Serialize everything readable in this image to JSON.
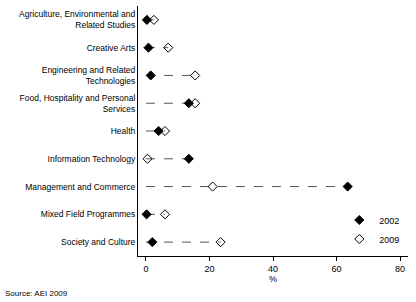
{
  "chart_data": {
    "type": "dot",
    "orientation": "horizontal",
    "categories": [
      "Agriculture, Environmental and Related Studies",
      "Creative Arts",
      "Engineering and Related Technologies",
      "Food, Hospitality and Personal Services",
      "Health",
      "Information Technology",
      "Management and Commerce",
      "Mixed Field Programmes",
      "Society and Culture"
    ],
    "series": [
      {
        "name": "2002",
        "color": "#000000",
        "marker": "diamond",
        "values": [
          0.3,
          0.8,
          1.5,
          13.5,
          4,
          13.5,
          63.5,
          0.2,
          2
        ]
      },
      {
        "name": "2009",
        "color": "#000000",
        "marker": "diamond-open",
        "values": [
          2.5,
          7,
          15.5,
          15.5,
          6,
          0.5,
          21,
          6,
          23.5
        ]
      }
    ],
    "xlabel": "%",
    "xlim": [
      -2.5,
      82.5
    ],
    "xticks": [
      0,
      20,
      40,
      60,
      80
    ],
    "grid": false,
    "legend": "lower right",
    "line_style": "dashed",
    "source": "Source: AEI 2009"
  }
}
